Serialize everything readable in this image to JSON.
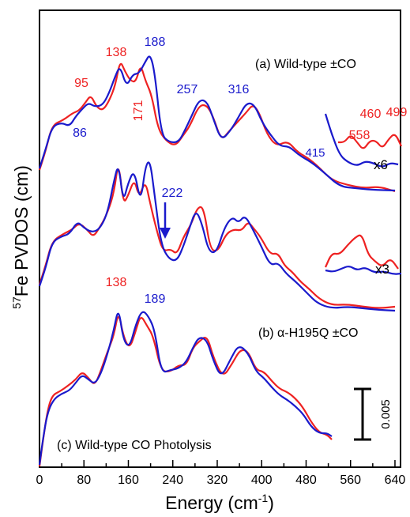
{
  "chart_data": {
    "type": "line",
    "xlabel": "Energy (cm",
    "xlabel_sup": "-1",
    "xlabel_close": ")",
    "ylabel_sup": "57",
    "ylabel": "Fe PVDOS (cm)",
    "xlim": [
      0,
      650
    ],
    "x_ticks": [
      "0",
      "80",
      "160",
      "240",
      "320",
      "400",
      "480",
      "560",
      "640"
    ],
    "y_ticks": "none",
    "scale_bar": {
      "value": 0.005,
      "label": "0.005"
    },
    "panels": [
      {
        "label": "(a) Wild-type ±CO",
        "magnification": "x6",
        "peak_labels": {
          "red": [
            "95",
            "138",
            "171",
            "460",
            "499",
            "558"
          ],
          "blue": [
            "86",
            "188",
            "257",
            "316",
            "415"
          ]
        }
      },
      {
        "label": "(b) α-H195Q ±CO",
        "magnification": "x3",
        "arrow_label": "222"
      },
      {
        "label": "(c) Wild-type CO Photolysis",
        "peak_labels": {
          "red": [
            "138"
          ],
          "blue": [
            "189"
          ]
        }
      }
    ],
    "series_colors": {
      "red": "#ee2222",
      "blue": "#1a1acc"
    },
    "axis_color": "#000000"
  }
}
